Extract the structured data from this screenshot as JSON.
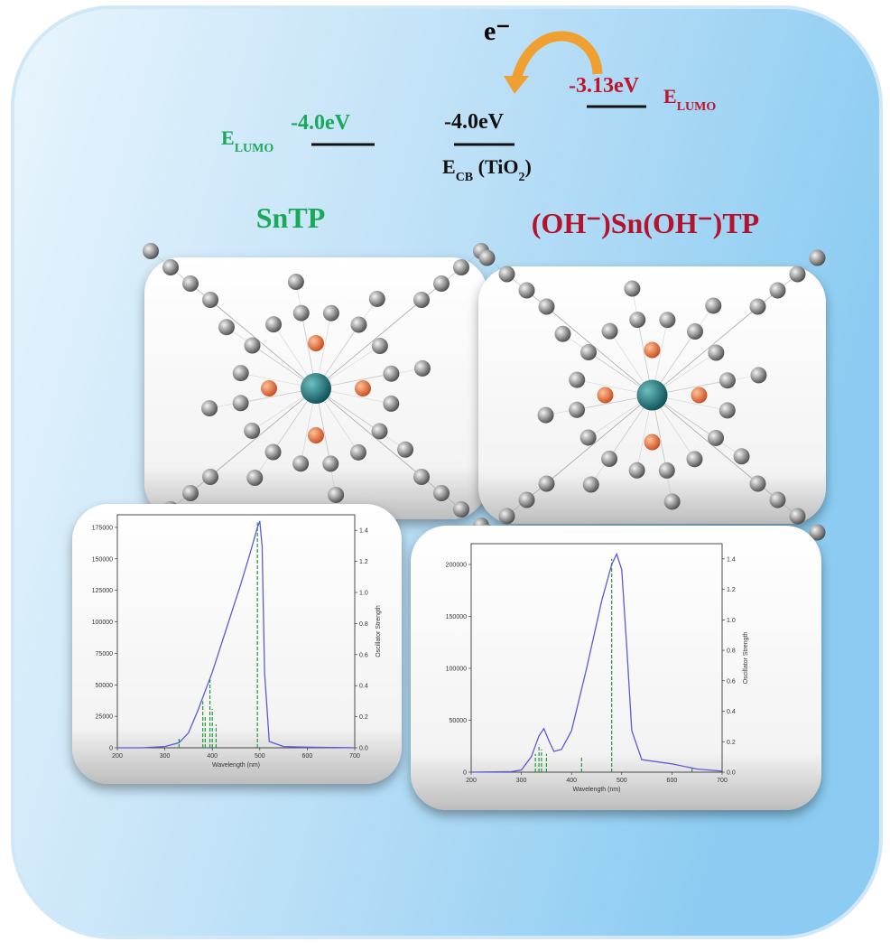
{
  "electron": "e⁻",
  "levels": [
    {
      "energy": "-4.0eV",
      "label": [
        {
          "text": "E"
        },
        {
          "text": "LUMO",
          "sub": true
        }
      ],
      "color": "#1aa85a"
    },
    {
      "energy": "-4.0eV",
      "label": [
        {
          "text": "E"
        },
        {
          "text": "CB",
          "sub": true
        },
        {
          "text": " (TiO"
        },
        {
          "text": "2",
          "sub": true
        },
        {
          "text": ")"
        }
      ],
      "color": "#111111"
    },
    {
      "energy": "-3.13eV",
      "label": [
        {
          "text": "E"
        },
        {
          "text": "LUMO",
          "sub": true
        }
      ],
      "color": "#c0142c"
    }
  ],
  "compounds": [
    {
      "name": "SnTP",
      "color": "#1aa85a",
      "spectrum": {
        "type": "line",
        "xlabel": "Wavelength (nm)",
        "y2label": "Oscillator Strength",
        "xlim": [
          200,
          700
        ],
        "xticks": [
          200,
          300,
          400,
          500,
          600,
          700
        ],
        "ylim": [
          0,
          185000
        ],
        "yticks": [
          0,
          25000,
          50000,
          75000,
          100000,
          125000,
          150000,
          175000
        ],
        "y2lim": [
          0,
          1.5
        ],
        "y2ticks": [
          {
            "value": 0,
            "label": "0.0"
          },
          0.2,
          0.4,
          0.6,
          0.8,
          {
            "value": 1,
            "label": "1.0"
          },
          1.2,
          1.4
        ],
        "curve": {
          "color": "#5b5bd6",
          "x": [
            200,
            250,
            300,
            330,
            350,
            370,
            400,
            430,
            460,
            480,
            495,
            500,
            505,
            510,
            520,
            550,
            600,
            650,
            700
          ],
          "y": [
            0,
            0,
            1000,
            4000,
            12000,
            30000,
            60000,
            95000,
            130000,
            155000,
            175000,
            180000,
            160000,
            60000,
            5000,
            1000,
            500,
            300,
            0
          ]
        },
        "sticks": {
          "color": "#1f9a3a",
          "x": [
            330,
            380,
            385,
            395,
            400,
            408,
            495
          ],
          "values": [
            0.06,
            0.3,
            0.2,
            0.45,
            0.25,
            0.15,
            1.45
          ]
        }
      }
    },
    {
      "name": "(OH⁻)Sn(OH⁻)TP",
      "color": "#b5122b",
      "spectrum": {
        "type": "line",
        "xlabel": "Wavelength (nm)",
        "y2label": "Oscillator Strength",
        "xlim": [
          200,
          700
        ],
        "xticks": [
          200,
          300,
          400,
          500,
          600,
          700
        ],
        "ylim": [
          0,
          220000
        ],
        "yticks": [
          0,
          50000,
          100000,
          150000,
          200000
        ],
        "y2lim": [
          0,
          1.5
        ],
        "y2ticks": [
          {
            "value": 0,
            "label": "0.0"
          },
          0.2,
          0.4,
          0.6,
          0.8,
          {
            "value": 1,
            "label": "1.0"
          },
          1.2,
          1.4
        ],
        "curve": {
          "color": "#5b5bd6",
          "x": [
            200,
            280,
            300,
            320,
            335,
            345,
            355,
            365,
            380,
            400,
            430,
            460,
            480,
            490,
            500,
            510,
            520,
            540,
            600,
            650,
            700
          ],
          "y": [
            0,
            500,
            2000,
            15000,
            35000,
            42000,
            30000,
            20000,
            22000,
            40000,
            100000,
            165000,
            200000,
            210000,
            195000,
            120000,
            40000,
            12000,
            8000,
            3000,
            1000
          ]
        },
        "sticks": {
          "color": "#1f9a3a",
          "x": [
            328,
            335,
            340,
            350,
            420,
            480,
            640
          ],
          "values": [
            0.12,
            0.18,
            0.15,
            0.12,
            0.1,
            1.4,
            0.03
          ]
        }
      }
    }
  ]
}
